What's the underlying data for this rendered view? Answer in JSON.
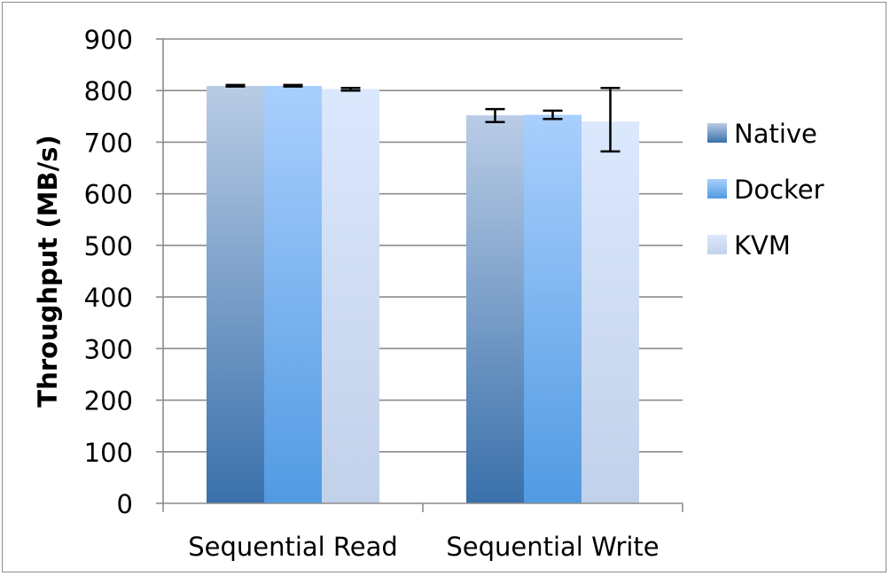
{
  "chart_data": {
    "type": "bar",
    "title": "",
    "xlabel": "",
    "ylabel": "Throughput (MB/s)",
    "ylim": [
      0,
      900
    ],
    "yticks": [
      0,
      100,
      200,
      300,
      400,
      500,
      600,
      700,
      800,
      900
    ],
    "grid": true,
    "legend_position": "right",
    "categories": [
      "Sequential Read",
      "Sequential Write"
    ],
    "series": [
      {
        "name": "Native",
        "values": [
          809,
          752
        ],
        "error": [
          [
            808,
            811
          ],
          [
            739,
            764
          ]
        ],
        "color": "#4a7fb8"
      },
      {
        "name": "Docker",
        "values": [
          809,
          753
        ],
        "error": [
          [
            808,
            811
          ],
          [
            745,
            761
          ]
        ],
        "color": "#5b9fe6"
      },
      {
        "name": "KVM",
        "values": [
          803,
          740
        ],
        "error": [
          [
            800,
            805
          ],
          [
            682,
            805
          ]
        ],
        "color": "#c6d6f2"
      }
    ]
  }
}
